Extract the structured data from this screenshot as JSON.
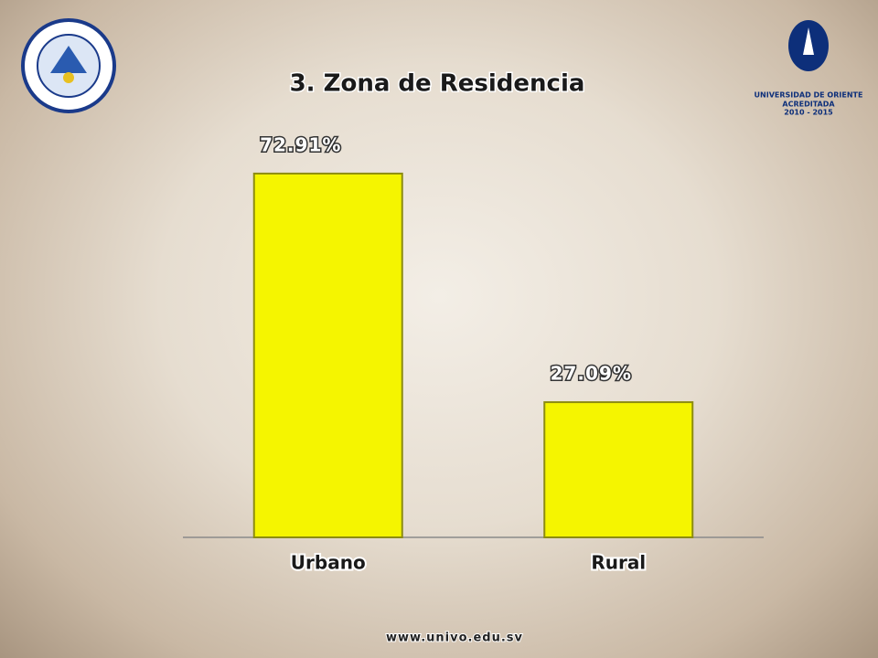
{
  "chart_data": {
    "type": "bar",
    "title": "3. Zona de Residencia",
    "categories": [
      "Urbano",
      "Rural"
    ],
    "values": [
      72.91,
      27.09
    ],
    "value_labels": [
      "72.91%",
      "27.09%"
    ],
    "color": "#f5f500"
  },
  "footer": "www.univo.edu.sv",
  "logo": {
    "name": "UNIVERSIDAD DE ORIENTE",
    "status": "ACREDITADA",
    "years": "2010 - 2015"
  }
}
